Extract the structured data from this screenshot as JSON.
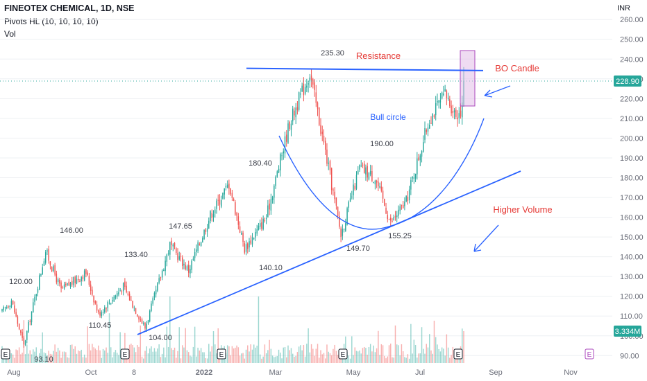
{
  "header": {
    "title": "FINEOTEX CHEMICAL, 1D, NSE",
    "indicator": "Pivots HL (10, 10, 10, 10)",
    "volume_label": "Vol",
    "unit": "INR"
  },
  "chart_data": {
    "type": "candlestick",
    "ylim": [
      85,
      265
    ],
    "y_ticks": [
      "260.00",
      "250.00",
      "240.00",
      "230.00",
      "220.00",
      "210.00",
      "200.00",
      "190.00",
      "180.00",
      "170.00",
      "160.00",
      "150.00",
      "140.00",
      "130.00",
      "120.00",
      "110.00",
      "100.00",
      "90.00"
    ],
    "x_labels": [
      "Aug",
      "Oct",
      "8",
      "2022",
      "Mar",
      "May",
      "Jul",
      "Sep",
      "Nov"
    ],
    "last_price": "228.90",
    "last_volume": "3.334M",
    "pivots": [
      "235.30",
      "180.40",
      "190.00",
      "146.00",
      "147.65",
      "133.40",
      "120.00",
      "110.45",
      "104.00",
      "93.10",
      "140.10",
      "149.70",
      "155.25"
    ],
    "annotations": {
      "resistance": "Resistance",
      "bo_candle": "BO Candle",
      "bull_circle": "Bull circle",
      "higher_volume": "Higher Volume"
    },
    "earnings_marker": "E",
    "anchors": [
      {
        "i": 0,
        "p": 112
      },
      {
        "i": 6,
        "p": 118
      },
      {
        "i": 14,
        "p": 95
      },
      {
        "i": 28,
        "p": 143
      },
      {
        "i": 38,
        "p": 123
      },
      {
        "i": 54,
        "p": 132
      },
      {
        "i": 62,
        "p": 111
      },
      {
        "i": 78,
        "p": 125
      },
      {
        "i": 92,
        "p": 104
      },
      {
        "i": 108,
        "p": 146
      },
      {
        "i": 120,
        "p": 133
      },
      {
        "i": 134,
        "p": 161
      },
      {
        "i": 146,
        "p": 177
      },
      {
        "i": 156,
        "p": 144
      },
      {
        "i": 170,
        "p": 160
      },
      {
        "i": 185,
        "p": 208
      },
      {
        "i": 198,
        "p": 233
      },
      {
        "i": 210,
        "p": 185
      },
      {
        "i": 218,
        "p": 151
      },
      {
        "i": 230,
        "p": 185
      },
      {
        "i": 240,
        "p": 180
      },
      {
        "i": 250,
        "p": 157
      },
      {
        "i": 260,
        "p": 168
      },
      {
        "i": 275,
        "p": 210
      },
      {
        "i": 285,
        "p": 222
      },
      {
        "i": 292,
        "p": 212
      },
      {
        "i": 297,
        "p": 216
      }
    ],
    "breakout_candle": {
      "open": 216,
      "close": 229,
      "high": 236,
      "low": 216
    }
  },
  "colors": {
    "up": "#26a69a",
    "down": "#ef5350",
    "annotation_red": "#e53935",
    "annotation_blue": "#2962ff",
    "box_fill": "#e1bee7",
    "box_stroke": "#ab47bc",
    "price_tag": "#26a69a",
    "grid": "#eef0f3",
    "text": "#131722",
    "axis_text": "#6a6d78",
    "earnings": "#131722",
    "earnings_future": "#ab47bc"
  }
}
